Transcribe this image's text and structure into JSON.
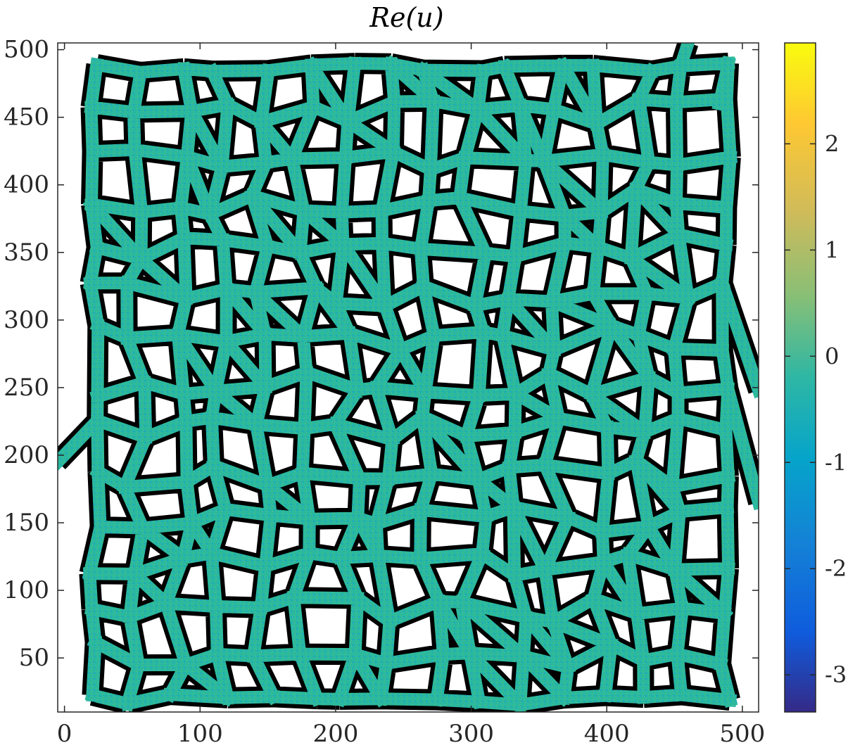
{
  "chart_data": {
    "type": "heatmap",
    "title": "Re(u)",
    "xlabel": "",
    "ylabel": "",
    "xlim": [
      -5,
      512
    ],
    "ylim": [
      10,
      505
    ],
    "xticks": [
      0,
      100,
      200,
      300,
      400,
      500
    ],
    "yticks": [
      50,
      100,
      150,
      200,
      250,
      300,
      350,
      400,
      450,
      500
    ],
    "colorbar": {
      "range": [
        -3.35,
        2.95
      ],
      "ticks": [
        2,
        1,
        0,
        -1,
        -2,
        -3
      ],
      "colormap": "parula",
      "colors": [
        "#352a87",
        "#0f5cdd",
        "#1481d6",
        "#06a4ca",
        "#2eb7a4",
        "#87bf77",
        "#d1bb59",
        "#fec832",
        "#f9fb0e"
      ]
    },
    "network": {
      "description_color_base": "#2ab8a0",
      "edge_color": "#000000"
    },
    "grid": false,
    "legend": "none"
  }
}
